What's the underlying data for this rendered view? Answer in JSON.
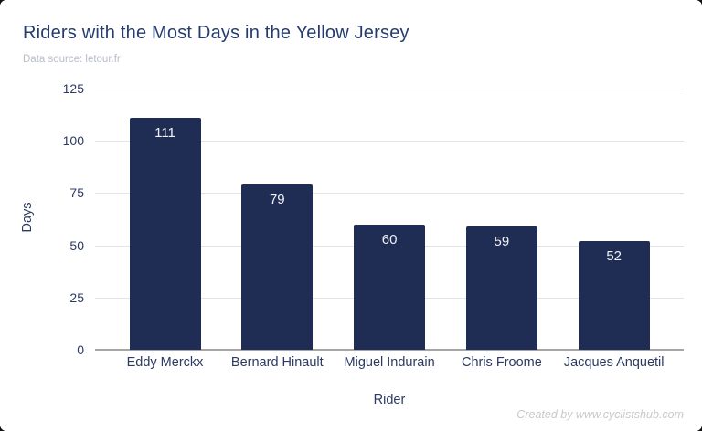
{
  "header": {
    "title": "Riders with the Most Days in the Yellow Jersey",
    "subtitle": "Data source: letour.fr"
  },
  "footer": {
    "credit": "Created by www.cyclistshub.com"
  },
  "chart_data": {
    "type": "bar",
    "title": "Riders with the Most Days in the Yellow Jersey",
    "subtitle": "Data source: letour.fr",
    "categories": [
      "Eddy Merckx",
      "Bernard Hinault",
      "Miguel Indurain",
      "Chris Froome",
      "Jacques Anquetil"
    ],
    "values": [
      111,
      79,
      60,
      59,
      52
    ],
    "xlabel": "Rider",
    "ylabel": "Days",
    "ylim": [
      0,
      125
    ],
    "yticks": [
      0,
      25,
      50,
      75,
      100,
      125
    ],
    "grid": true,
    "legend": false,
    "colors": {
      "bar": "#1f2c54",
      "title": "#263c6e",
      "axis_text": "#2c3a64",
      "subtitle": "#b7bdc9",
      "gridline": "#e3e3e3",
      "value_label": "#f0f1f5",
      "credit": "#c9c9c9",
      "background": "#ffffff"
    }
  }
}
